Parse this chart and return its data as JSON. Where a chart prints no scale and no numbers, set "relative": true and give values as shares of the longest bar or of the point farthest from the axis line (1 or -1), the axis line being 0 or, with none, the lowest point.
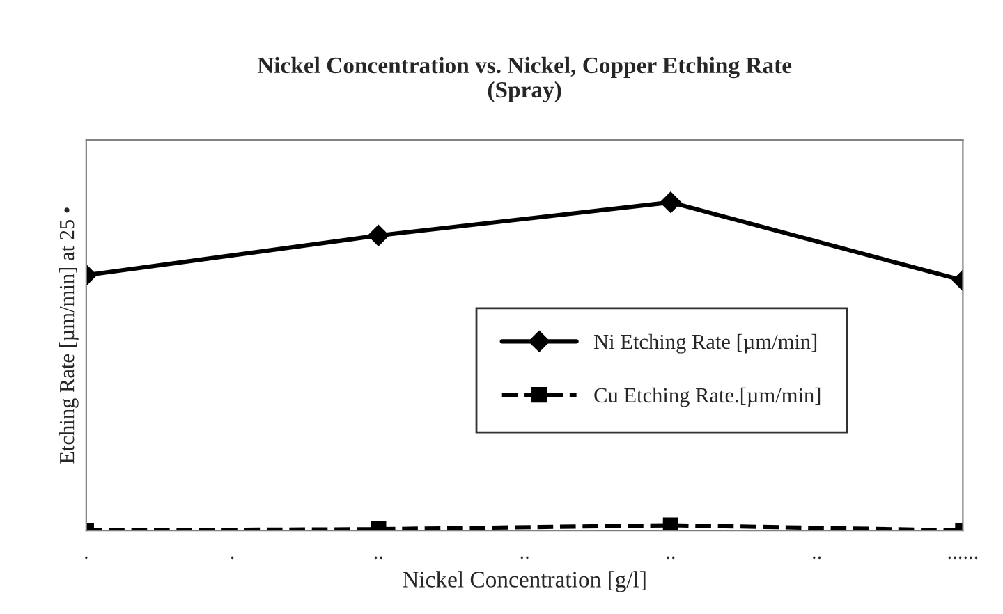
{
  "chart_data": {
    "type": "line",
    "title": "Nickel Concentration vs. Nickel, Copper Etching Rate\n(Spray)",
    "xlabel": "Nickel Concentration [g/l]",
    "ylabel": "Etching Rate [µm/min] at 25 •",
    "relative": true,
    "legend": "right",
    "categories": [
      ".",
      ".",
      "..",
      "..",
      "..",
      "..",
      "......"
    ],
    "series": [
      {
        "name": "Ni Etching Rate [µm/min]",
        "color": "#000000",
        "marker": "diamond",
        "line_style": "solid",
        "values": [
          0.778,
          null,
          0.899,
          null,
          1,
          null,
          0.762
        ]
      },
      {
        "name": "Cu Etching Rate.[µm/min]",
        "color": "#000000",
        "marker": "square",
        "line_style": "dashed",
        "values": [
          0,
          null,
          0.004,
          null,
          0.016,
          null,
          0
        ]
      }
    ]
  }
}
